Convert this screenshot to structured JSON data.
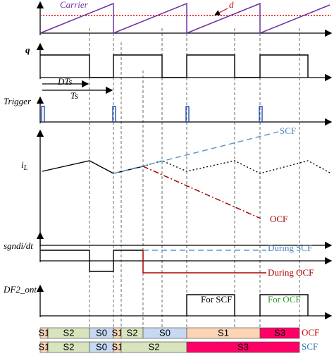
{
  "labels": {
    "carrier": "Carrier",
    "d": "d",
    "q": "q",
    "dts": "DTs",
    "ts": "Ts",
    "trigger": "Trigger",
    "il": {
      "main": "i",
      "sub": "L"
    },
    "scf": "SCF",
    "ocf": "OCF",
    "sgn": "sgndi/dt",
    "during_scf": "During SCF",
    "during_ocf": "During OCF",
    "df2": "DF2_ont",
    "for_scf": "For SCF",
    "for_ocf": "For OCF"
  },
  "state_rows": [
    {
      "label": "OCF",
      "segments": [
        "S1",
        "S2",
        "S0",
        "S1",
        "S2",
        "S0",
        "S1",
        "S3"
      ]
    },
    {
      "label": "SCF",
      "segments": [
        "S1",
        "S2",
        "S0",
        "S1",
        "S2",
        "S3"
      ]
    }
  ]
}
